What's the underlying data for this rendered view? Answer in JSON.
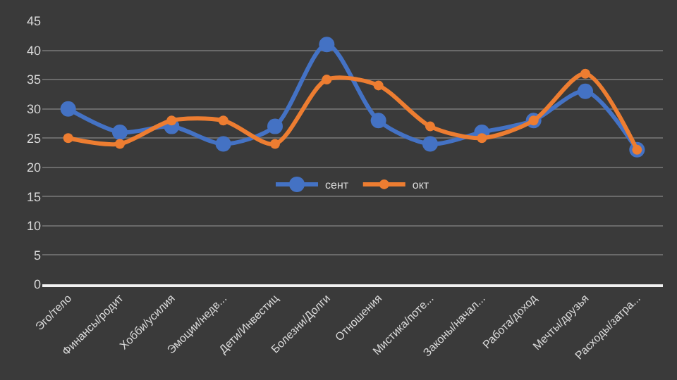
{
  "chart_data": {
    "type": "line",
    "categories": [
      "Эго/тело",
      "Финансы/родит",
      "Хобби/усилия",
      "Эмоции/недв...",
      "Дети/Инвестиц",
      "Болезни/Долги",
      "Отношения",
      "Мистика/поте...",
      "Законы/начал...",
      "Работа/доход",
      "Мечты/друзья",
      "Расходы/затра..."
    ],
    "series": [
      {
        "name": "сент",
        "color": "#4472c4",
        "values": [
          30,
          26,
          27,
          24,
          27,
          41,
          28,
          24,
          26,
          28,
          33,
          23
        ]
      },
      {
        "name": "окт",
        "color": "#ed7d31",
        "values": [
          25,
          24,
          28,
          28,
          24,
          35,
          34,
          27,
          25,
          28,
          36,
          23
        ]
      }
    ],
    "ylim": [
      0,
      45
    ],
    "yticks": [
      0,
      5,
      10,
      15,
      20,
      25,
      30,
      35,
      40,
      45
    ],
    "grid": "y",
    "legend": "center",
    "marker": "circle",
    "line_style": "solid"
  }
}
